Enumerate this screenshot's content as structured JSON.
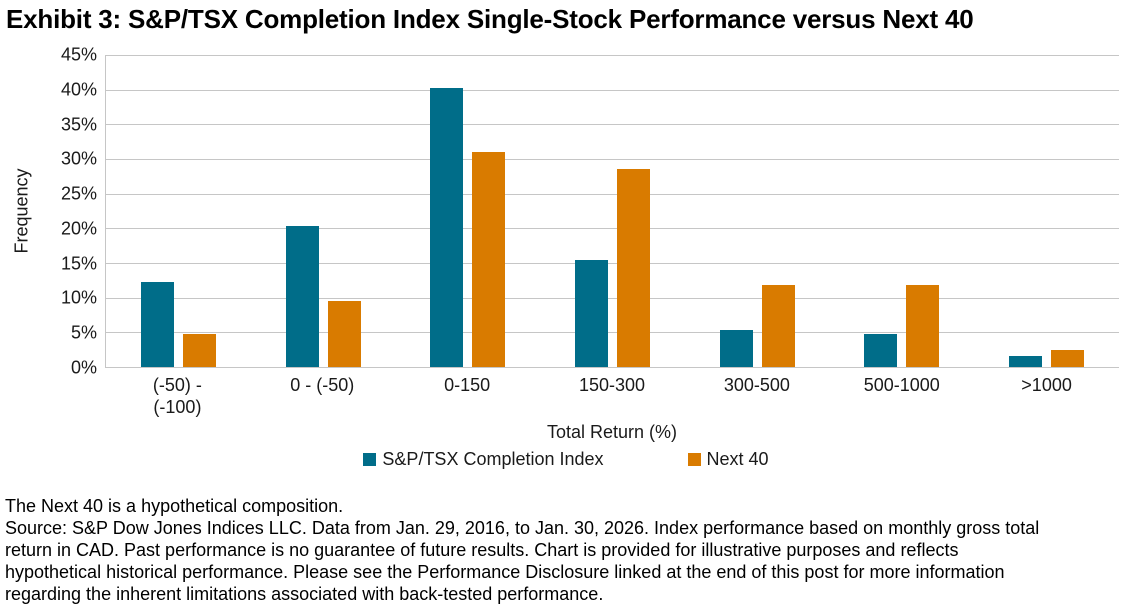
{
  "title": "Exhibit 3: S&P/TSX Completion Index Single-Stock Performance versus Next 40",
  "chart_data": {
    "type": "bar",
    "title": "Exhibit 3: S&P/TSX Completion Index Single-Stock Performance versus Next 40",
    "categories": [
      "(-50) -\n(-100)",
      "0 - (-50)",
      "0-150",
      "150-300",
      "300-500",
      "500-1000",
      ">1000"
    ],
    "series": [
      {
        "name": "S&P/TSX Completion Index",
        "color": "#006d89",
        "values": [
          12.3,
          20.3,
          40.3,
          15.5,
          5.3,
          4.7,
          1.6
        ]
      },
      {
        "name": "Next 40",
        "color": "#d97b00",
        "values": [
          4.8,
          9.5,
          31.0,
          28.6,
          11.9,
          11.9,
          2.4
        ]
      }
    ],
    "xlabel": "Total Return (%)",
    "ylabel": "Frequency",
    "ylim": [
      0,
      45
    ],
    "ytick_step": 5,
    "ytick_labels": [
      "0%",
      "5%",
      "10%",
      "15%",
      "20%",
      "25%",
      "30%",
      "35%",
      "40%",
      "45%"
    ],
    "grid": true,
    "gridline_color": "#c6c6c6",
    "legend_position": "bottom"
  },
  "footnotes": {
    "text": "The Next 40 is a hypothetical composition.\nSource: S&P Dow Jones Indices LLC. Data from Jan. 29, 2016, to Jan. 30, 2026. Index performance based on monthly gross total\nreturn in CAD. Past performance is no guarantee of future results. Chart is provided for illustrative purposes and reflects\nhypothetical historical performance. Please see the Performance Disclosure linked at the end of this post for more information\nregarding the inherent limitations associated with back-tested performance."
  }
}
